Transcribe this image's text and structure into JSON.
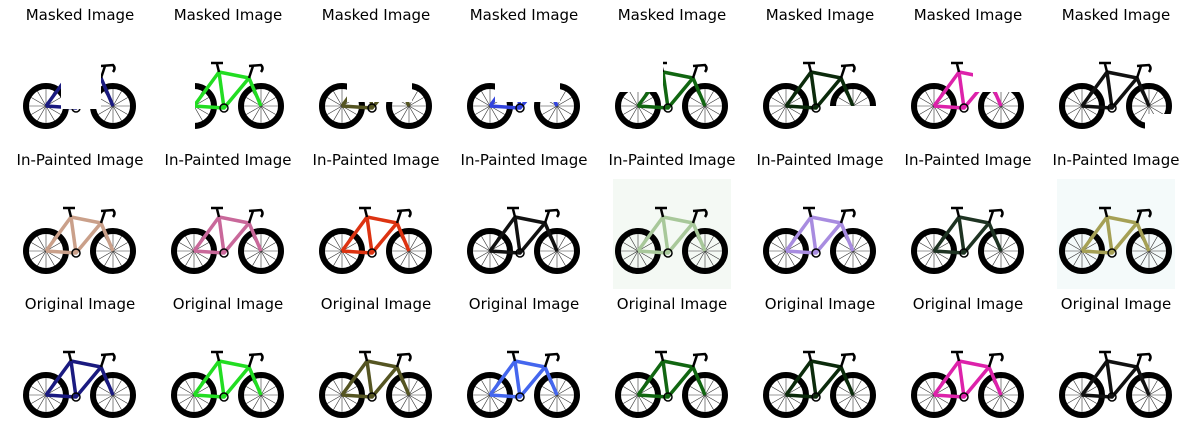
{
  "rows": [
    {
      "title": "Masked Image",
      "cells": [
        {
          "frame": "#1a1a80",
          "bg": "#ffffff",
          "mask": "top-center-gap"
        },
        {
          "frame": "#22dd22",
          "bg": "#ffffff",
          "mask": "rear-block"
        },
        {
          "frame": "#555522",
          "bg": "#ffffff",
          "mask": "center-corner"
        },
        {
          "frame": "#3344dd",
          "bg": "#ffffff",
          "mask": "center-corner"
        },
        {
          "frame": "#116611",
          "bg": "#ffffff",
          "mask": "top-left"
        },
        {
          "frame": "#0b2a0b",
          "bg": "#ffffff",
          "mask": "bottom-right"
        },
        {
          "frame": "#dd22aa",
          "bg": "#ffffff",
          "mask": "top-right"
        },
        {
          "frame": "#111111",
          "bg": "#ffffff",
          "mask": "corners"
        }
      ]
    },
    {
      "title": "In-Painted Image",
      "cells": [
        {
          "frame": "#caa08a",
          "bg": "#ffffff",
          "mask": "none"
        },
        {
          "frame": "#c9689a",
          "bg": "#ffffff",
          "mask": "none"
        },
        {
          "frame": "#dd3311",
          "bg": "#ffffff",
          "mask": "none"
        },
        {
          "frame": "#111111",
          "bg": "#ffffff",
          "mask": "none"
        },
        {
          "frame": "#a8c89a",
          "bg": "#f4f9f4",
          "mask": "none"
        },
        {
          "frame": "#a88ce0",
          "bg": "#ffffff",
          "mask": "none"
        },
        {
          "frame": "#1e3322",
          "bg": "#ffffff",
          "mask": "none"
        },
        {
          "frame": "#a5a055",
          "bg": "#f4fafa",
          "mask": "none"
        }
      ]
    },
    {
      "title": "Original Image",
      "cells": [
        {
          "frame": "#1a1a80",
          "bg": "#ffffff",
          "mask": "none"
        },
        {
          "frame": "#22dd22",
          "bg": "#ffffff",
          "mask": "none"
        },
        {
          "frame": "#555522",
          "bg": "#ffffff",
          "mask": "none"
        },
        {
          "frame": "#4466ee",
          "bg": "#ffffff",
          "mask": "none"
        },
        {
          "frame": "#116611",
          "bg": "#ffffff",
          "mask": "none"
        },
        {
          "frame": "#0b2a0b",
          "bg": "#ffffff",
          "mask": "none"
        },
        {
          "frame": "#dd22aa",
          "bg": "#ffffff",
          "mask": "none"
        },
        {
          "frame": "#111111",
          "bg": "#ffffff",
          "mask": "none"
        }
      ]
    }
  ]
}
